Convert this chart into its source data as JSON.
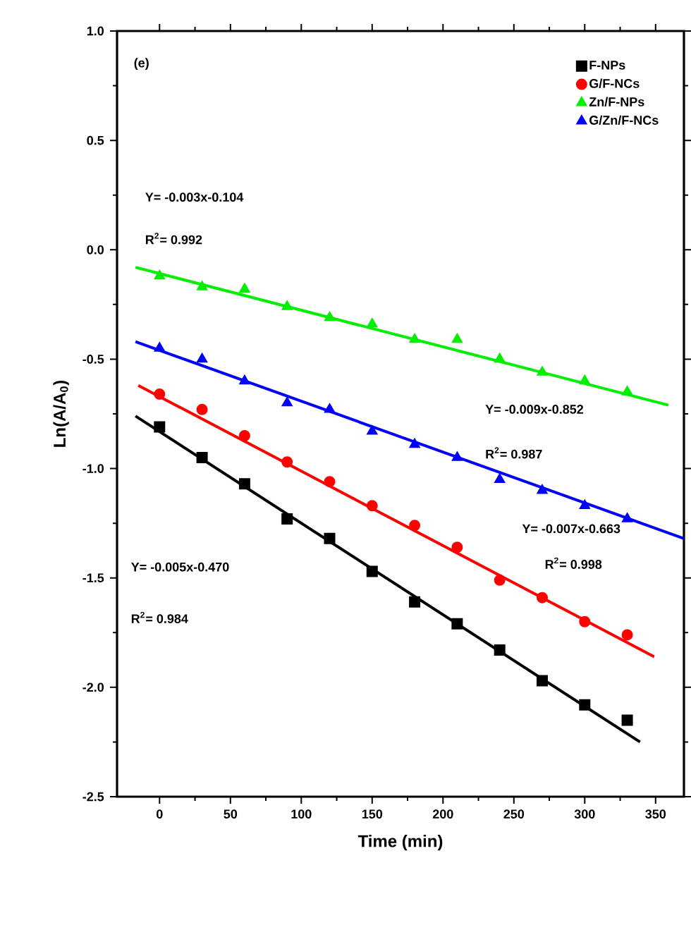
{
  "chart_data": {
    "type": "scatter",
    "xlabel": "Time (min)",
    "ylabel": "Ln(A/A$_{0}$)",
    "xlim": [
      -30,
      370
    ],
    "ylim": [
      -2.5,
      1.0
    ],
    "xticks": [
      0,
      50,
      100,
      150,
      200,
      250,
      300,
      350
    ],
    "yticks": [
      {
        "value": -2.5,
        "label": "-2.5"
      },
      {
        "value": -2.0,
        "label": "-2.0"
      },
      {
        "value": -1.5,
        "label": "-1.5"
      },
      {
        "value": -1.0,
        "label": "-1.0"
      },
      {
        "value": -0.5,
        "label": "-0.5"
      },
      {
        "value": 0,
        "label": "0.0"
      },
      {
        "value": 0.5,
        "label": "0.5"
      },
      {
        "value": 1.0,
        "label": "1.0"
      }
    ],
    "x": [
      0,
      30,
      60,
      90,
      120,
      150,
      180,
      210,
      240,
      270,
      300,
      330
    ],
    "legend": "top right",
    "series": [
      {
        "name": "F-NPs",
        "color": "#000000",
        "marker": "square",
        "values": [
          -0.81,
          -0.95,
          -1.07,
          -1.23,
          -1.32,
          -1.47,
          -1.61,
          -1.71,
          -1.83,
          -1.97,
          -2.08,
          -2.15
        ]
      },
      {
        "name": "G/F-NCs",
        "color": "#ff0000",
        "marker": "circle",
        "values": [
          -0.66,
          -0.73,
          -0.85,
          -0.97,
          -1.06,
          -1.17,
          -1.26,
          -1.36,
          -1.51,
          -1.59,
          -1.7,
          -1.76
        ]
      },
      {
        "name": "Zn/F-NPs",
        "color": "#00ee00",
        "marker": "triangle",
        "values": [
          -0.12,
          -0.17,
          -0.18,
          -0.26,
          -0.31,
          -0.34,
          -0.41,
          -0.41,
          -0.5,
          -0.56,
          -0.6,
          -0.65
        ]
      },
      {
        "name": "G/Zn/F-NCs",
        "color": "#0000ff",
        "marker": "triangle",
        "values": [
          -0.45,
          -0.5,
          -0.6,
          -0.7,
          -0.73,
          -0.83,
          -0.89,
          -0.95,
          -1.05,
          -1.1,
          -1.17,
          -1.23
        ]
      },
      {
        "type": "line",
        "color": "#000000",
        "marker": "none",
        "x": [
          -17,
          339
        ],
        "values": [
          -0.76,
          -2.25
        ]
      },
      {
        "type": "line",
        "color": "#ff0000",
        "marker": "none",
        "x": [
          -15,
          349
        ],
        "values": [
          -0.62,
          -1.86
        ]
      },
      {
        "type": "line",
        "color": "#00ee00",
        "marker": "none",
        "x": [
          -17,
          359
        ],
        "values": [
          -0.08,
          -0.71
        ]
      },
      {
        "type": "line",
        "color": "#0000ff",
        "marker": "none",
        "x": [
          -17,
          370
        ],
        "values": [
          -0.42,
          -1.32
        ]
      }
    ],
    "annotations": [
      "(e)",
      "Y= -0.003x-0.104",
      "R$^{2}$= 0.992",
      "Y= -0.009x-0.852",
      "R$^{2}$= 0.987",
      "Y= -0.007x-0.663",
      "R$^{2}$= 0.998",
      "Y= -0.005x-0.470",
      "R$^{2}$= 0.984"
    ]
  }
}
